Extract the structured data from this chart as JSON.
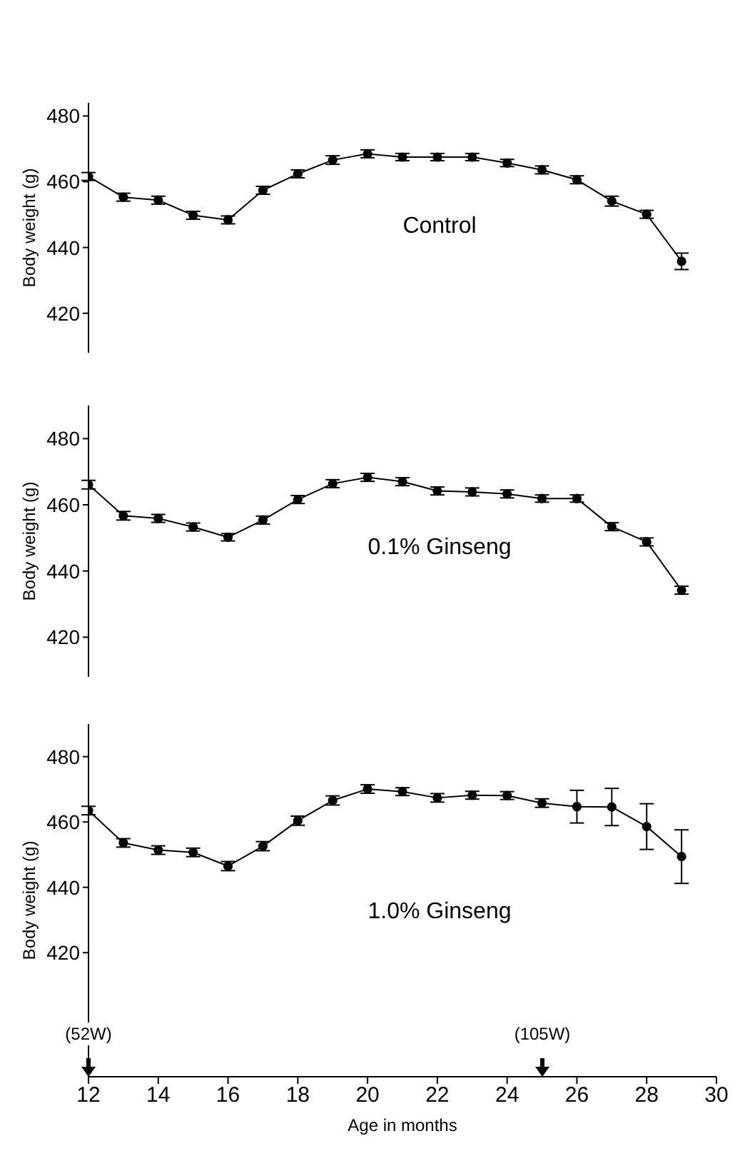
{
  "chart_data": [
    {
      "type": "line",
      "ylabel": "Body weight (g)",
      "annotations": [
        "Control"
      ],
      "xlim": [
        12,
        30
      ],
      "xticks": [
        12,
        14,
        16,
        18,
        20,
        22,
        24,
        26,
        28,
        30
      ],
      "ylim": [
        408,
        484
      ],
      "yticks": [
        420,
        440,
        460,
        480
      ],
      "tick_labels": "y",
      "grid": false,
      "marker": "circle",
      "line_style": "solid",
      "x": [
        12,
        13,
        14,
        15,
        16,
        17,
        18,
        19,
        20,
        21,
        22,
        23,
        24,
        25,
        26,
        27,
        28,
        29
      ],
      "series": [
        {
          "color": "#000000",
          "values": [
            461.6,
            455.3,
            454.4,
            449.8,
            448.4,
            457.4,
            462.4,
            466.6,
            468.5,
            467.5,
            467.5,
            467.5,
            465.7,
            463.6,
            460.6,
            454.1,
            450.1,
            435.8
          ],
          "errors": [
            1.2,
            1.2,
            1.2,
            1.2,
            1.2,
            1.2,
            1.2,
            1.3,
            1.2,
            1.1,
            1.1,
            1.1,
            1.1,
            1.2,
            1.2,
            1.5,
            1.2,
            2.5
          ]
        }
      ]
    },
    {
      "type": "line",
      "ylabel": "Body weight (g)",
      "annotations": [
        "0.1% Ginseng"
      ],
      "xlim": [
        12,
        30
      ],
      "xticks": [
        12,
        14,
        16,
        18,
        20,
        22,
        24,
        26,
        28,
        30
      ],
      "ylim": [
        408,
        490
      ],
      "yticks": [
        420,
        440,
        460,
        480
      ],
      "tick_labels": "y",
      "grid": false,
      "marker": "circle",
      "line_style": "solid",
      "x": [
        12,
        13,
        14,
        15,
        16,
        17,
        18,
        19,
        20,
        21,
        22,
        23,
        24,
        25,
        26,
        27,
        28,
        29
      ],
      "series": [
        {
          "color": "#000000",
          "values": [
            466.1,
            456.7,
            455.9,
            453.3,
            450.2,
            455.4,
            461.6,
            466.4,
            468.3,
            467.0,
            464.2,
            463.9,
            463.3,
            461.9,
            461.9,
            453.4,
            448.8,
            434.2
          ],
          "errors": [
            1.3,
            1.3,
            1.2,
            1.2,
            1.1,
            1.2,
            1.2,
            1.2,
            1.2,
            1.2,
            1.2,
            1.2,
            1.2,
            1.1,
            1.1,
            1.2,
            1.2,
            1.2
          ]
        }
      ]
    },
    {
      "type": "line",
      "ylabel": "Body weight (g)",
      "xlabel": "Age in months",
      "annotations": [
        "1.0% Ginseng",
        "(52W)",
        "(105W)"
      ],
      "xlim": [
        12,
        30
      ],
      "xticks": [
        12,
        14,
        16,
        18,
        20,
        22,
        24,
        26,
        28,
        30
      ],
      "ylim": [
        382,
        490
      ],
      "yticks": [
        420,
        440,
        460,
        480
      ],
      "grid": false,
      "marker": "circle",
      "line_style": "solid",
      "x": [
        12,
        13,
        14,
        15,
        16,
        17,
        18,
        19,
        20,
        21,
        22,
        23,
        24,
        25,
        26,
        27,
        28,
        29
      ],
      "series": [
        {
          "color": "#000000",
          "values": [
            463.5,
            453.6,
            451.4,
            450.7,
            446.5,
            452.6,
            460.4,
            466.6,
            470.1,
            469.3,
            467.4,
            468.2,
            468.1,
            465.8,
            464.7,
            464.6,
            458.6,
            449.4
          ],
          "errors": [
            1.3,
            1.3,
            1.3,
            1.3,
            1.4,
            1.4,
            1.4,
            1.4,
            1.3,
            1.2,
            1.3,
            1.2,
            1.2,
            1.3,
            5,
            5.7,
            7,
            8.2
          ]
        }
      ]
    }
  ]
}
